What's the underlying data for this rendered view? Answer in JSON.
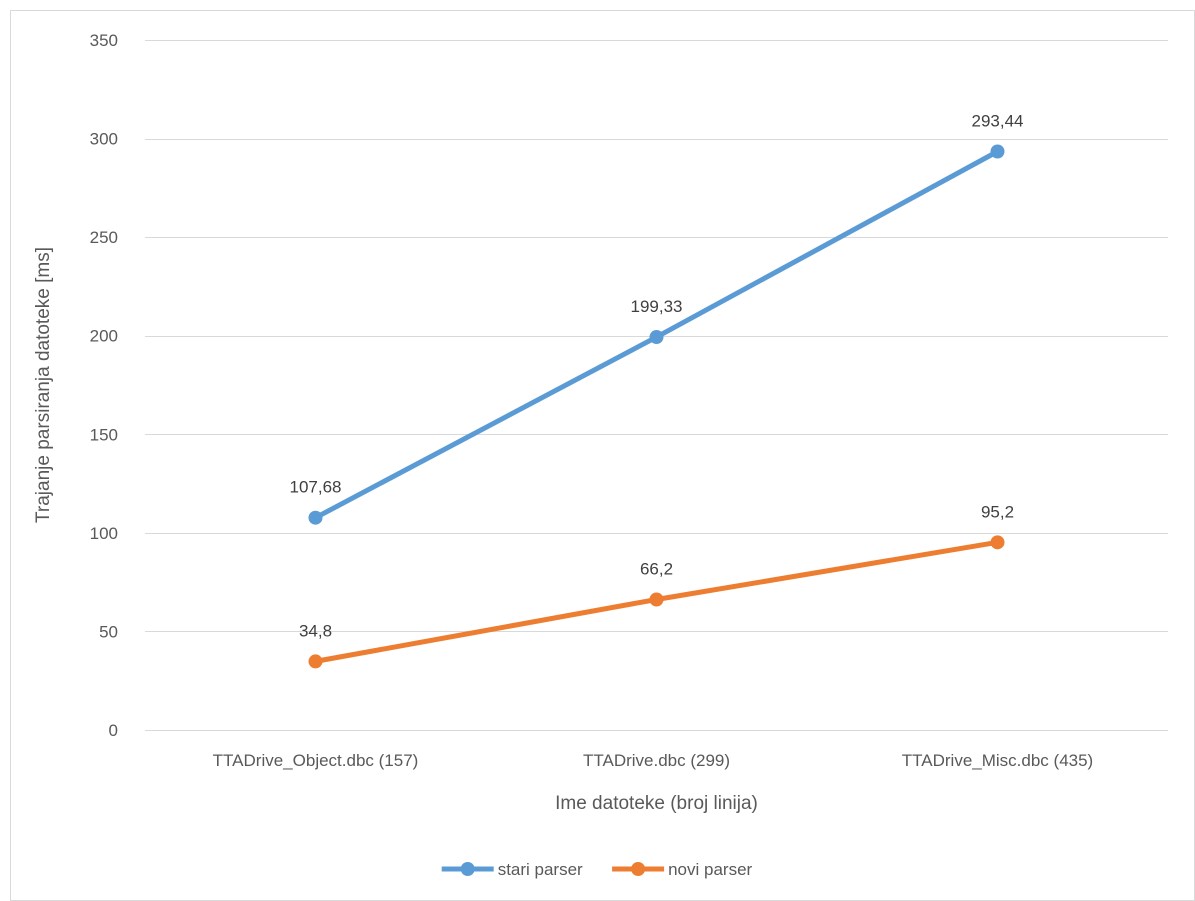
{
  "chart_data": {
    "type": "line",
    "categories": [
      "TTADrive_Object.dbc (157)",
      "TTADrive.dbc (299)",
      "TTADrive_Misc.dbc (435)"
    ],
    "series": [
      {
        "name": "stari parser",
        "values": [
          107.68,
          199.33,
          293.44
        ],
        "labels": [
          "107,68",
          "199,33",
          "293,44"
        ],
        "color": "#5b9bd5"
      },
      {
        "name": "novi parser",
        "values": [
          34.8,
          66.2,
          95.2
        ],
        "labels": [
          "34,8",
          "66,2",
          "95,2"
        ],
        "color": "#ed7d31"
      }
    ],
    "title": "",
    "xlabel": "Ime datoteke (broj linija)",
    "ylabel": "Trajanje parsiranja datoteke [ms]",
    "ylim": [
      0,
      350
    ],
    "yticks": [
      0,
      50,
      100,
      150,
      200,
      250,
      300,
      350
    ],
    "grid": true,
    "legend_position": "bottom"
  }
}
